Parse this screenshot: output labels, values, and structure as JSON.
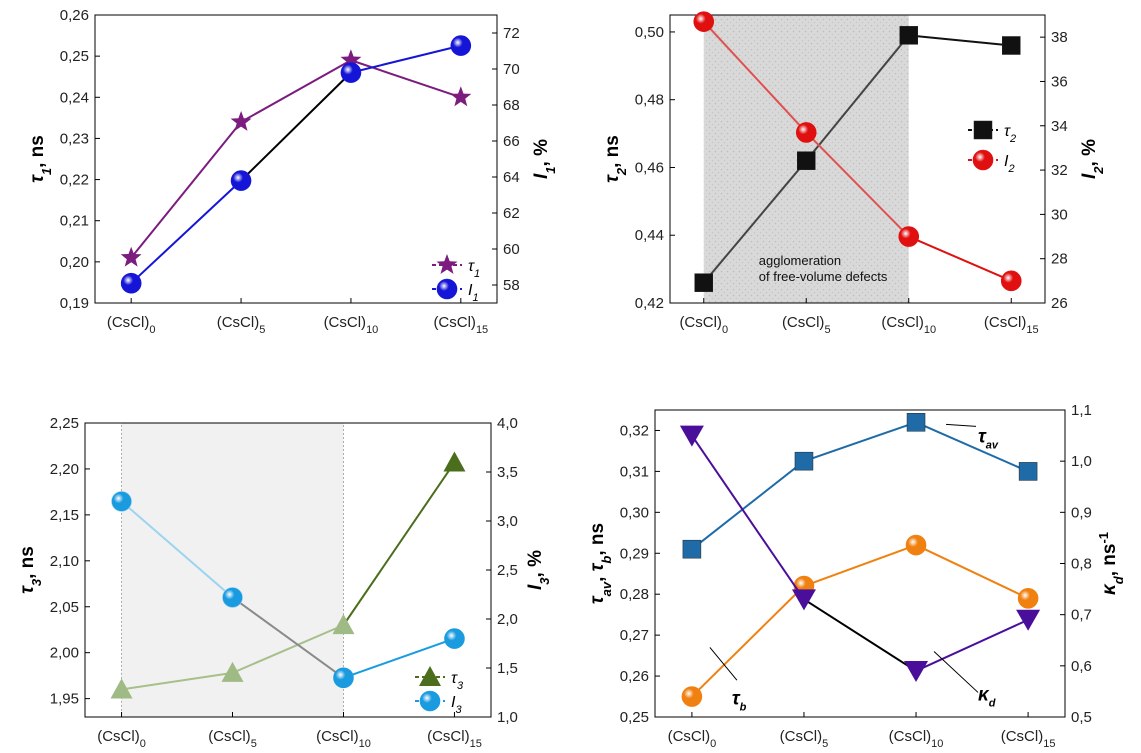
{
  "categories": [
    "(CsCl)0",
    "(CsCl)5",
    "(CsCl)10",
    "(CsCl)15"
  ],
  "chart_data": [
    {
      "type": "line",
      "panel": "top-left",
      "categories": [
        "(CsCl)0",
        "(CsCl)5",
        "(CsCl)10",
        "(CsCl)15"
      ],
      "ylabel": "τ1, ns",
      "y2label": "I1, %",
      "ylim": [
        0.19,
        0.26
      ],
      "y2lim": [
        57,
        73
      ],
      "yticks": [
        "0,19",
        "0,20",
        "0,21",
        "0,22",
        "0,23",
        "0,24",
        "0,25",
        "0,26"
      ],
      "y2ticks": [
        "58",
        "60",
        "62",
        "64",
        "66",
        "68",
        "70",
        "72"
      ],
      "series": [
        {
          "name": "τ1",
          "axis": "left",
          "color": "#7b1c7e",
          "marker": "star",
          "values": [
            0.201,
            0.234,
            0.249,
            0.24
          ]
        },
        {
          "name": "I1",
          "axis": "right",
          "color": "#1515d8",
          "marker": "sphere",
          "values": [
            58.1,
            63.8,
            69.8,
            71.3
          ]
        }
      ],
      "legend_position": "bottom-right",
      "grid": false
    },
    {
      "type": "line",
      "panel": "top-right",
      "categories": [
        "(CsCl)0",
        "(CsCl)5",
        "(CsCl)10",
        "(CsCl)15"
      ],
      "ylabel": "τ2, ns",
      "y2label": "I2, %",
      "ylim": [
        0.42,
        0.505
      ],
      "y2lim": [
        26,
        39
      ],
      "yticks": [
        "0,42",
        "0,44",
        "0,46",
        "0,48",
        "0,50"
      ],
      "y2ticks": [
        "26",
        "28",
        "30",
        "32",
        "34",
        "36",
        "38"
      ],
      "series": [
        {
          "name": "τ2",
          "axis": "left",
          "color": "#111111",
          "marker": "square",
          "values": [
            0.426,
            0.462,
            0.499,
            0.496
          ]
        },
        {
          "name": "I2",
          "axis": "right",
          "color": "#e01010",
          "marker": "sphere",
          "values": [
            38.7,
            33.7,
            29.0,
            27.0
          ]
        }
      ],
      "shaded_region": {
        "from": "(CsCl)0",
        "to": "(CsCl)10",
        "label_line1": "agglomeration",
        "label_line2": "of free-volume defects"
      },
      "legend_position": "right",
      "grid": false
    },
    {
      "type": "line",
      "panel": "bottom-left",
      "categories": [
        "(CsCl)0",
        "(CsCl)5",
        "(CsCl)10",
        "(CsCl)15"
      ],
      "ylabel": "τ3, ns",
      "y2label": "I3, %",
      "ylim": [
        1.93,
        2.25
      ],
      "y2lim": [
        1.0,
        4.0
      ],
      "yticks": [
        "1,95",
        "2,00",
        "2,05",
        "2,10",
        "2,15",
        "2,20",
        "2,25"
      ],
      "y2ticks": [
        "1,0",
        "1,5",
        "2,0",
        "2,5",
        "3,0",
        "3,5",
        "4,0"
      ],
      "series": [
        {
          "name": "τ3",
          "axis": "left",
          "color": "#4b6e1d",
          "marker": "triangle",
          "values": [
            1.96,
            1.978,
            2.03,
            2.207
          ]
        },
        {
          "name": "I3",
          "axis": "right",
          "color": "#1a9be0",
          "marker": "sphere",
          "values": [
            3.2,
            2.22,
            1.4,
            1.8
          ]
        }
      ],
      "shaded_region": {
        "from": "(CsCl)0",
        "to": "(CsCl)10"
      },
      "legend_position": "bottom-right",
      "grid": false
    },
    {
      "type": "line",
      "panel": "bottom-right",
      "categories": [
        "(CsCl)0",
        "(CsCl)5",
        "(CsCl)10",
        "(CsCl)15"
      ],
      "ylabel": "τav, τb, ns",
      "y2label": "κd, ns-1",
      "ylim": [
        0.25,
        0.325
      ],
      "y2lim": [
        0.5,
        1.1
      ],
      "yticks": [
        "0,25",
        "0,26",
        "0,27",
        "0,28",
        "0,29",
        "0,30",
        "0,31",
        "0,32"
      ],
      "y2ticks": [
        "0,5",
        "0,6",
        "0,7",
        "0,8",
        "0,9",
        "1,0",
        "1,1"
      ],
      "series": [
        {
          "name": "τav",
          "axis": "left",
          "color": "#1e6ba8",
          "marker": "square",
          "values": [
            0.291,
            0.3125,
            0.322,
            0.31
          ]
        },
        {
          "name": "τb",
          "axis": "left",
          "color": "#f08010",
          "marker": "sphere",
          "values": [
            0.255,
            0.282,
            0.292,
            0.279
          ]
        },
        {
          "name": "κd",
          "axis": "right",
          "color": "#4a0f9a",
          "marker": "triangle-down",
          "values": [
            1.05,
            0.73,
            0.59,
            0.69
          ]
        }
      ],
      "annotations": [
        "τav",
        "τb",
        "κd"
      ],
      "grid": false
    }
  ]
}
